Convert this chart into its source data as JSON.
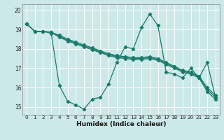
{
  "xlabel": "Humidex (Indice chaleur)",
  "bg_color": "#cce8e8",
  "line_color": "#1a7a6a",
  "grid_color": "#ffffff",
  "zigzag": [
    19.3,
    18.9,
    18.9,
    18.8,
    16.1,
    15.3,
    15.1,
    14.9,
    15.4,
    15.5,
    16.2,
    17.3,
    18.1,
    18.0,
    19.1,
    19.8,
    19.2,
    16.8,
    16.7,
    16.5,
    17.0,
    16.5,
    17.3,
    15.5
  ],
  "smooth_lines": [
    [
      19.3,
      18.9,
      18.9,
      18.85,
      18.7,
      18.5,
      18.35,
      18.2,
      18.05,
      17.9,
      17.75,
      17.65,
      17.6,
      17.55,
      17.55,
      17.6,
      17.5,
      17.3,
      17.1,
      16.9,
      16.8,
      16.6,
      16.0,
      15.6
    ],
    [
      19.3,
      18.9,
      18.9,
      18.85,
      18.65,
      18.45,
      18.3,
      18.15,
      18.0,
      17.85,
      17.7,
      17.6,
      17.55,
      17.5,
      17.5,
      17.55,
      17.45,
      17.25,
      17.05,
      16.85,
      16.75,
      16.55,
      15.9,
      15.5
    ],
    [
      19.3,
      18.9,
      18.9,
      18.85,
      18.6,
      18.4,
      18.25,
      18.1,
      17.95,
      17.8,
      17.65,
      17.55,
      17.5,
      17.45,
      17.45,
      17.5,
      17.4,
      17.2,
      17.0,
      16.8,
      16.7,
      16.5,
      15.8,
      15.4
    ]
  ],
  "xlim": [
    -0.5,
    23.5
  ],
  "ylim": [
    14.6,
    20.3
  ],
  "yticks": [
    15,
    16,
    17,
    18,
    19,
    20
  ],
  "xticks": [
    0,
    1,
    2,
    3,
    4,
    5,
    6,
    7,
    8,
    9,
    10,
    11,
    12,
    13,
    14,
    15,
    16,
    17,
    18,
    19,
    20,
    21,
    22,
    23
  ],
  "marker": "D",
  "marker_size": 2.2,
  "linewidth": 0.9
}
